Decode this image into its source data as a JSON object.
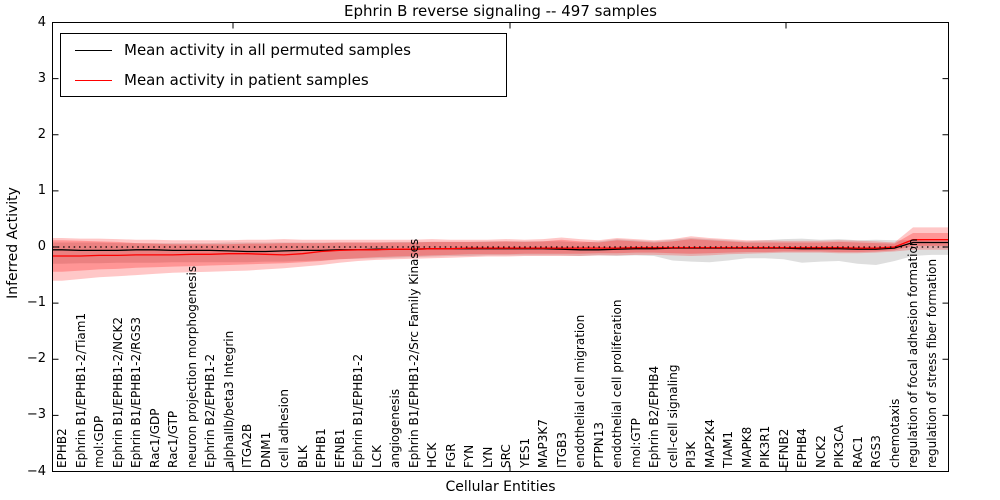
{
  "chart_data": {
    "type": "line",
    "title": "Ephrin B reverse signaling -- 497 samples",
    "xlabel": "Cellular Entities",
    "ylabel": "Inferred Activity",
    "ylim": [
      -4,
      4
    ],
    "yticks": [
      4,
      3,
      2,
      1,
      0,
      -1,
      -2,
      -3,
      -4
    ],
    "ytick_labels": [
      "4",
      "3",
      "2",
      "1",
      "0",
      "−1",
      "−2",
      "−3",
      "−4"
    ],
    "grid": false,
    "legend_position": "upper left",
    "categories": [
      "EPHB2",
      "Ephrin B1/EPHB1-2/Tiam1",
      "mol:GDP",
      "Ephrin B1/EPHB1-2/NCK2",
      "Ephrin B1/EPHB1-2/RGS3",
      "Rac1/GDP",
      "Rac1/GTP",
      "neuron projection morphogenesis",
      "Ephrin B2/EPHB1-2",
      "alphaIIb/beta3 Integrin",
      "ITGA2B",
      "DNM1",
      "cell adhesion",
      "BLK",
      "EPHB1",
      "EFNB1",
      "Ephrin B1/EPHB1-2",
      "LCK",
      "angiogenesis",
      "Ephrin B1/EPHB1-2/Src Family Kinases",
      "HCK",
      "FGR",
      "FYN",
      "LYN",
      "SRC",
      "YES1",
      "MAP3K7",
      "ITGB3",
      "endothelial cell migration",
      "PTPN13",
      "endothelial cell proliferation",
      "mol:GTP",
      "Ephrin B2/EPHB4",
      "cell-cell signaling",
      "PI3K",
      "MAP2K4",
      "TIAM1",
      "MAPK8",
      "PIK3R1",
      "EFNB2",
      "EPHB4",
      "NCK2",
      "PIK3CA",
      "RAC1",
      "RGS3",
      "chemotaxis",
      "regulation of focal adhesion formation",
      "regulation of stress fiber formation"
    ],
    "series": [
      {
        "name": "Mean activity in all permuted samples",
        "color": "#000000",
        "style": "solid",
        "values": [
          -0.05,
          -0.06,
          -0.06,
          -0.06,
          -0.05,
          -0.05,
          -0.06,
          -0.06,
          -0.06,
          -0.07,
          -0.08,
          -0.08,
          -0.07,
          -0.06,
          -0.06,
          -0.05,
          -0.05,
          -0.04,
          -0.04,
          -0.04,
          -0.03,
          -0.03,
          -0.03,
          -0.03,
          -0.03,
          -0.03,
          -0.03,
          -0.04,
          -0.05,
          -0.05,
          -0.04,
          -0.03,
          -0.03,
          -0.02,
          -0.02,
          -0.02,
          -0.02,
          -0.02,
          -0.02,
          -0.02,
          -0.03,
          -0.03,
          -0.03,
          -0.04,
          -0.04,
          -0.02,
          0.08,
          0.08
        ]
      },
      {
        "name": "Mean activity in patient samples",
        "color": "#ff0000",
        "style": "solid",
        "values": [
          -0.16,
          -0.16,
          -0.15,
          -0.15,
          -0.14,
          -0.14,
          -0.14,
          -0.13,
          -0.13,
          -0.12,
          -0.12,
          -0.13,
          -0.14,
          -0.12,
          -0.08,
          -0.06,
          -0.05,
          -0.05,
          -0.04,
          -0.04,
          -0.03,
          -0.03,
          -0.02,
          -0.02,
          -0.02,
          -0.02,
          -0.02,
          -0.02,
          -0.02,
          -0.02,
          -0.02,
          -0.01,
          -0.01,
          -0.01,
          -0.01,
          -0.01,
          -0.01,
          -0.01,
          -0.01,
          -0.01,
          -0.01,
          -0.01,
          -0.01,
          -0.02,
          -0.02,
          0.0,
          0.13,
          0.13
        ]
      }
    ],
    "baseline": {
      "value": 0,
      "style": "dotted",
      "color": "#000000"
    },
    "bands": [
      {
        "name": "permuted-samples-band",
        "fill": "rgba(0,0,0,0.13)",
        "upper": [
          0.08,
          0.08,
          0.08,
          0.07,
          0.07,
          0.07,
          0.07,
          0.07,
          0.07,
          0.08,
          0.08,
          0.08,
          0.08,
          0.08,
          0.08,
          0.08,
          0.08,
          0.08,
          0.09,
          0.09,
          0.09,
          0.09,
          0.09,
          0.1,
          0.1,
          0.1,
          0.1,
          0.1,
          0.08,
          0.1,
          0.14,
          0.12,
          0.1,
          0.13,
          0.16,
          0.14,
          0.12,
          0.1,
          0.12,
          0.14,
          0.15,
          0.13,
          0.14,
          0.12,
          0.13,
          0.12,
          0.12,
          0.1
        ],
        "lower": [
          -0.3,
          -0.29,
          -0.29,
          -0.28,
          -0.28,
          -0.28,
          -0.27,
          -0.27,
          -0.27,
          -0.27,
          -0.27,
          -0.26,
          -0.26,
          -0.25,
          -0.24,
          -0.22,
          -0.21,
          -0.2,
          -0.19,
          -0.18,
          -0.17,
          -0.16,
          -0.16,
          -0.15,
          -0.15,
          -0.15,
          -0.15,
          -0.15,
          -0.16,
          -0.15,
          -0.16,
          -0.15,
          -0.16,
          -0.24,
          -0.26,
          -0.27,
          -0.24,
          -0.2,
          -0.2,
          -0.22,
          -0.28,
          -0.26,
          -0.25,
          -0.3,
          -0.32,
          -0.25,
          -0.16,
          -0.14
        ]
      },
      {
        "name": "patient-samples-band-outer",
        "fill": "rgba(255,0,0,0.22)",
        "upper": [
          0.16,
          0.15,
          0.15,
          0.14,
          0.13,
          0.13,
          0.12,
          0.12,
          0.12,
          0.12,
          0.13,
          0.13,
          0.14,
          0.13,
          0.13,
          0.13,
          0.13,
          0.13,
          0.13,
          0.13,
          0.14,
          0.13,
          0.13,
          0.13,
          0.14,
          0.13,
          0.14,
          0.17,
          0.14,
          0.12,
          0.16,
          0.14,
          0.12,
          0.14,
          0.19,
          0.16,
          0.14,
          0.12,
          0.12,
          0.11,
          0.11,
          0.11,
          0.12,
          0.11,
          0.1,
          0.08,
          0.35,
          0.35
        ],
        "lower": [
          -0.6,
          -0.57,
          -0.54,
          -0.52,
          -0.5,
          -0.48,
          -0.46,
          -0.45,
          -0.44,
          -0.43,
          -0.42,
          -0.4,
          -0.38,
          -0.35,
          -0.32,
          -0.28,
          -0.25,
          -0.23,
          -0.22,
          -0.21,
          -0.2,
          -0.19,
          -0.18,
          -0.17,
          -0.17,
          -0.16,
          -0.16,
          -0.16,
          -0.16,
          -0.15,
          -0.15,
          -0.14,
          -0.14,
          -0.15,
          -0.16,
          -0.15,
          -0.13,
          -0.12,
          -0.11,
          -0.1,
          -0.1,
          -0.1,
          -0.11,
          -0.11,
          -0.1,
          -0.08,
          -0.05,
          -0.05
        ]
      },
      {
        "name": "patient-samples-band-inner",
        "fill": "rgba(255,0,0,0.25)",
        "upper": [
          0.12,
          0.11,
          0.1,
          0.09,
          0.07,
          0.06,
          0.05,
          0.05,
          0.05,
          0.05,
          0.06,
          0.06,
          0.07,
          0.07,
          0.07,
          0.08,
          0.08,
          0.08,
          0.08,
          0.08,
          0.09,
          0.09,
          0.09,
          0.09,
          0.1,
          0.09,
          0.1,
          0.13,
          0.1,
          0.08,
          0.12,
          0.1,
          0.08,
          0.1,
          0.14,
          0.12,
          0.1,
          0.08,
          0.08,
          0.08,
          0.08,
          0.08,
          0.09,
          0.08,
          0.07,
          0.06,
          0.25,
          0.25
        ],
        "lower": [
          -0.44,
          -0.42,
          -0.4,
          -0.39,
          -0.37,
          -0.36,
          -0.35,
          -0.34,
          -0.33,
          -0.32,
          -0.31,
          -0.3,
          -0.29,
          -0.27,
          -0.25,
          -0.22,
          -0.2,
          -0.18,
          -0.17,
          -0.16,
          -0.15,
          -0.14,
          -0.13,
          -0.13,
          -0.13,
          -0.12,
          -0.12,
          -0.12,
          -0.12,
          -0.11,
          -0.11,
          -0.1,
          -0.1,
          -0.11,
          -0.12,
          -0.11,
          -0.1,
          -0.09,
          -0.09,
          -0.08,
          -0.08,
          -0.08,
          -0.09,
          -0.09,
          -0.08,
          -0.06,
          0.02,
          0.02
        ]
      }
    ]
  },
  "legend": {
    "items": [
      {
        "label": "Mean activity in all permuted samples",
        "color": "#000000"
      },
      {
        "label": "Mean activity in patient samples",
        "color": "#ff0000"
      }
    ]
  }
}
